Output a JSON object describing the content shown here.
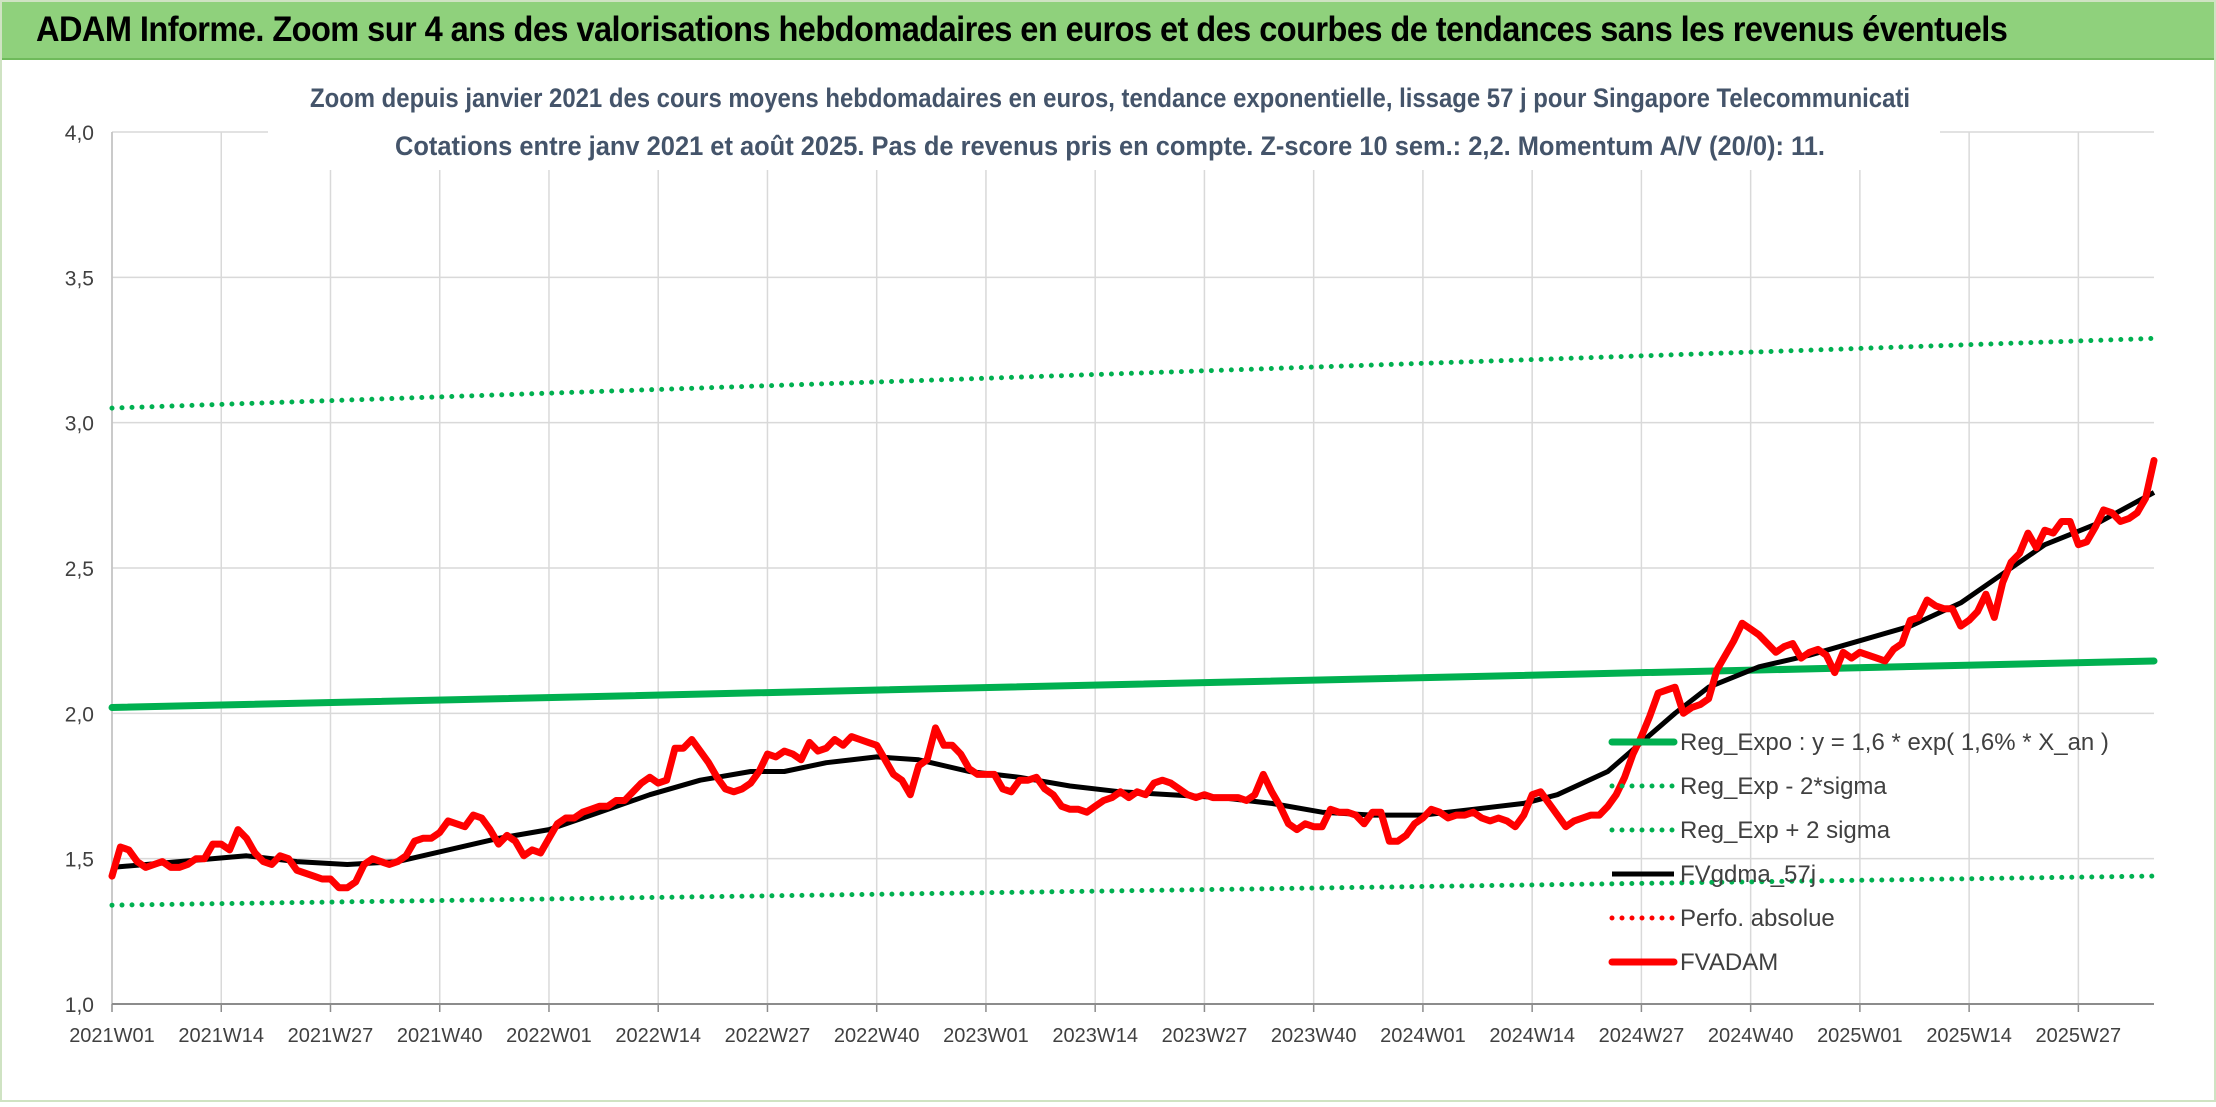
{
  "header": {
    "title": "ADAM Informe. Zoom sur 4 ans des valorisations hebdomadaires en euros et des courbes de tendances sans les revenus éventuels"
  },
  "colors": {
    "banner": "#8fd17c",
    "reg_expo": "#00b050",
    "fvgdma": "#000000",
    "perfo": "#ff0000",
    "fvadam": "#ff0000",
    "grid": "#d9d9d9",
    "title_text": "#44546a"
  },
  "chart_data": {
    "type": "line",
    "title": "Zoom depuis janvier 2021 des cours moyens hebdomadaires en euros, tendance exponentielle, lissage 57 j pour Singapore Telecommunicati",
    "subtitle": "Cotations entre janv 2021 et août 2025. Pas de revenus pris en compte. Z-score 10 sem.: 2,2. Momentum A/V (20/0): 11.",
    "xlabel": "",
    "ylabel": "",
    "ylim": [
      1.0,
      4.0
    ],
    "yticks": [
      "1,0",
      "1,5",
      "2,0",
      "2,5",
      "3,0",
      "3,5",
      "4,0"
    ],
    "ytick_values": [
      1.0,
      1.5,
      2.0,
      2.5,
      3.0,
      3.5,
      4.0
    ],
    "x_range_weeks": [
      0,
      243
    ],
    "xticks": [
      "2021W01",
      "2021W14",
      "2021W27",
      "2021W40",
      "2022W01",
      "2022W14",
      "2022W27",
      "2022W40",
      "2023W01",
      "2023W14",
      "2023W27",
      "2023W40",
      "2024W01",
      "2024W14",
      "2024W27",
      "2024W40",
      "2025W01",
      "2025W14",
      "2025W27"
    ],
    "xtick_weeks": [
      0,
      13,
      26,
      39,
      52,
      65,
      78,
      91,
      104,
      117,
      130,
      143,
      156,
      169,
      182,
      195,
      208,
      221,
      234
    ],
    "grid": "on",
    "legend_position": "bottom-right",
    "series": [
      {
        "name": "Reg_Expo : y = 1,6 * exp( 1,6% *  X_an )",
        "style": "solid-thick",
        "color": "#00b050",
        "points": [
          [
            0,
            2.02
          ],
          [
            243,
            2.18
          ]
        ]
      },
      {
        "name": "Reg_Exp - 2*sigma",
        "style": "dotted",
        "color": "#00b050",
        "points": [
          [
            0,
            1.34
          ],
          [
            243,
            1.44
          ]
        ]
      },
      {
        "name": "Reg_Exp + 2 sigma",
        "style": "dotted",
        "color": "#00b050",
        "points": [
          [
            0,
            3.05
          ],
          [
            243,
            3.29
          ]
        ]
      },
      {
        "name": "FVgdma_57j",
        "style": "solid",
        "color": "#000000",
        "points": [
          [
            0,
            1.47
          ],
          [
            8,
            1.49
          ],
          [
            16,
            1.51
          ],
          [
            22,
            1.49
          ],
          [
            28,
            1.48
          ],
          [
            34,
            1.49
          ],
          [
            40,
            1.53
          ],
          [
            46,
            1.57
          ],
          [
            52,
            1.6
          ],
          [
            58,
            1.66
          ],
          [
            64,
            1.72
          ],
          [
            70,
            1.77
          ],
          [
            76,
            1.8
          ],
          [
            80,
            1.8
          ],
          [
            85,
            1.83
          ],
          [
            91,
            1.85
          ],
          [
            96,
            1.84
          ],
          [
            102,
            1.8
          ],
          [
            108,
            1.78
          ],
          [
            114,
            1.75
          ],
          [
            120,
            1.73
          ],
          [
            126,
            1.72
          ],
          [
            132,
            1.71
          ],
          [
            138,
            1.69
          ],
          [
            144,
            1.66
          ],
          [
            150,
            1.65
          ],
          [
            156,
            1.65
          ],
          [
            162,
            1.67
          ],
          [
            168,
            1.69
          ],
          [
            172,
            1.72
          ],
          [
            178,
            1.8
          ],
          [
            182,
            1.9
          ],
          [
            186,
            2.0
          ],
          [
            190,
            2.09
          ],
          [
            196,
            2.16
          ],
          [
            202,
            2.2
          ],
          [
            208,
            2.25
          ],
          [
            214,
            2.3
          ],
          [
            220,
            2.38
          ],
          [
            226,
            2.5
          ],
          [
            230,
            2.58
          ],
          [
            236,
            2.65
          ],
          [
            243,
            2.76
          ]
        ]
      },
      {
        "name": "Perfo. absolue",
        "style": "dotted",
        "color": "#ff0000",
        "points": []
      },
      {
        "name": "FVADAM",
        "style": "solid-thick",
        "color": "#ff0000",
        "points": [
          [
            0,
            1.44
          ],
          [
            1,
            1.54
          ],
          [
            2,
            1.53
          ],
          [
            3,
            1.49
          ],
          [
            4,
            1.47
          ],
          [
            5,
            1.48
          ],
          [
            6,
            1.49
          ],
          [
            7,
            1.47
          ],
          [
            8,
            1.47
          ],
          [
            9,
            1.48
          ],
          [
            10,
            1.5
          ],
          [
            11,
            1.5
          ],
          [
            12,
            1.55
          ],
          [
            13,
            1.55
          ],
          [
            14,
            1.53
          ],
          [
            15,
            1.6
          ],
          [
            16,
            1.57
          ],
          [
            17,
            1.52
          ],
          [
            18,
            1.49
          ],
          [
            19,
            1.48
          ],
          [
            20,
            1.51
          ],
          [
            21,
            1.5
          ],
          [
            22,
            1.46
          ],
          [
            23,
            1.45
          ],
          [
            24,
            1.44
          ],
          [
            25,
            1.43
          ],
          [
            26,
            1.43
          ],
          [
            27,
            1.4
          ],
          [
            28,
            1.4
          ],
          [
            29,
            1.42
          ],
          [
            30,
            1.48
          ],
          [
            31,
            1.5
          ],
          [
            32,
            1.49
          ],
          [
            33,
            1.48
          ],
          [
            34,
            1.49
          ],
          [
            35,
            1.51
          ],
          [
            36,
            1.56
          ],
          [
            37,
            1.57
          ],
          [
            38,
            1.57
          ],
          [
            39,
            1.59
          ],
          [
            40,
            1.63
          ],
          [
            41,
            1.62
          ],
          [
            42,
            1.61
          ],
          [
            43,
            1.65
          ],
          [
            44,
            1.64
          ],
          [
            45,
            1.6
          ],
          [
            46,
            1.55
          ],
          [
            47,
            1.58
          ],
          [
            48,
            1.56
          ],
          [
            49,
            1.51
          ],
          [
            50,
            1.53
          ],
          [
            51,
            1.52
          ],
          [
            52,
            1.57
          ],
          [
            53,
            1.62
          ],
          [
            54,
            1.64
          ],
          [
            55,
            1.64
          ],
          [
            56,
            1.66
          ],
          [
            57,
            1.67
          ],
          [
            58,
            1.68
          ],
          [
            59,
            1.68
          ],
          [
            60,
            1.7
          ],
          [
            61,
            1.7
          ],
          [
            62,
            1.73
          ],
          [
            63,
            1.76
          ],
          [
            64,
            1.78
          ],
          [
            65,
            1.76
          ],
          [
            66,
            1.77
          ],
          [
            67,
            1.88
          ],
          [
            68,
            1.88
          ],
          [
            69,
            1.91
          ],
          [
            70,
            1.87
          ],
          [
            71,
            1.83
          ],
          [
            72,
            1.78
          ],
          [
            73,
            1.74
          ],
          [
            74,
            1.73
          ],
          [
            75,
            1.74
          ],
          [
            76,
            1.76
          ],
          [
            77,
            1.8
          ],
          [
            78,
            1.86
          ],
          [
            79,
            1.85
          ],
          [
            80,
            1.87
          ],
          [
            81,
            1.86
          ],
          [
            82,
            1.84
          ],
          [
            83,
            1.9
          ],
          [
            84,
            1.87
          ],
          [
            85,
            1.88
          ],
          [
            86,
            1.91
          ],
          [
            87,
            1.89
          ],
          [
            88,
            1.92
          ],
          [
            89,
            1.91
          ],
          [
            90,
            1.9
          ],
          [
            91,
            1.89
          ],
          [
            92,
            1.84
          ],
          [
            93,
            1.79
          ],
          [
            94,
            1.77
          ],
          [
            95,
            1.72
          ],
          [
            96,
            1.82
          ],
          [
            97,
            1.84
          ],
          [
            98,
            1.95
          ],
          [
            99,
            1.89
          ],
          [
            100,
            1.89
          ],
          [
            101,
            1.86
          ],
          [
            102,
            1.81
          ],
          [
            103,
            1.79
          ],
          [
            104,
            1.79
          ],
          [
            105,
            1.79
          ],
          [
            106,
            1.74
          ],
          [
            107,
            1.73
          ],
          [
            108,
            1.77
          ],
          [
            109,
            1.77
          ],
          [
            110,
            1.78
          ],
          [
            111,
            1.74
          ],
          [
            112,
            1.72
          ],
          [
            113,
            1.68
          ],
          [
            114,
            1.67
          ],
          [
            115,
            1.67
          ],
          [
            116,
            1.66
          ],
          [
            117,
            1.68
          ],
          [
            118,
            1.7
          ],
          [
            119,
            1.71
          ],
          [
            120,
            1.73
          ],
          [
            121,
            1.71
          ],
          [
            122,
            1.73
          ],
          [
            123,
            1.72
          ],
          [
            124,
            1.76
          ],
          [
            125,
            1.77
          ],
          [
            126,
            1.76
          ],
          [
            127,
            1.74
          ],
          [
            128,
            1.72
          ],
          [
            129,
            1.71
          ],
          [
            130,
            1.72
          ],
          [
            131,
            1.71
          ],
          [
            132,
            1.71
          ],
          [
            133,
            1.71
          ],
          [
            134,
            1.71
          ],
          [
            135,
            1.7
          ],
          [
            136,
            1.72
          ],
          [
            137,
            1.79
          ],
          [
            138,
            1.73
          ],
          [
            139,
            1.68
          ],
          [
            140,
            1.62
          ],
          [
            141,
            1.6
          ],
          [
            142,
            1.62
          ],
          [
            143,
            1.61
          ],
          [
            144,
            1.61
          ],
          [
            145,
            1.67
          ],
          [
            146,
            1.66
          ],
          [
            147,
            1.66
          ],
          [
            148,
            1.65
          ],
          [
            149,
            1.62
          ],
          [
            150,
            1.66
          ],
          [
            151,
            1.66
          ],
          [
            152,
            1.56
          ],
          [
            153,
            1.56
          ],
          [
            154,
            1.58
          ],
          [
            155,
            1.62
          ],
          [
            156,
            1.64
          ],
          [
            157,
            1.67
          ],
          [
            158,
            1.66
          ],
          [
            159,
            1.64
          ],
          [
            160,
            1.65
          ],
          [
            161,
            1.65
          ],
          [
            162,
            1.66
          ],
          [
            163,
            1.64
          ],
          [
            164,
            1.63
          ],
          [
            165,
            1.64
          ],
          [
            166,
            1.63
          ],
          [
            167,
            1.61
          ],
          [
            168,
            1.65
          ],
          [
            169,
            1.72
          ],
          [
            170,
            1.73
          ],
          [
            171,
            1.69
          ],
          [
            172,
            1.65
          ],
          [
            173,
            1.61
          ],
          [
            174,
            1.63
          ],
          [
            175,
            1.64
          ],
          [
            176,
            1.65
          ],
          [
            177,
            1.65
          ],
          [
            178,
            1.68
          ],
          [
            179,
            1.72
          ],
          [
            180,
            1.78
          ],
          [
            181,
            1.86
          ],
          [
            182,
            1.92
          ],
          [
            183,
            1.99
          ],
          [
            184,
            2.07
          ],
          [
            185,
            2.08
          ],
          [
            186,
            2.09
          ],
          [
            187,
            2.0
          ],
          [
            188,
            2.02
          ],
          [
            189,
            2.03
          ],
          [
            190,
            2.05
          ],
          [
            191,
            2.15
          ],
          [
            192,
            2.2
          ],
          [
            193,
            2.25
          ],
          [
            194,
            2.31
          ],
          [
            195,
            2.29
          ],
          [
            196,
            2.27
          ],
          [
            197,
            2.24
          ],
          [
            198,
            2.21
          ],
          [
            199,
            2.23
          ],
          [
            200,
            2.24
          ],
          [
            201,
            2.19
          ],
          [
            202,
            2.21
          ],
          [
            203,
            2.22
          ],
          [
            204,
            2.2
          ],
          [
            205,
            2.14
          ],
          [
            206,
            2.21
          ],
          [
            207,
            2.19
          ],
          [
            208,
            2.21
          ],
          [
            209,
            2.2
          ],
          [
            210,
            2.19
          ],
          [
            211,
            2.18
          ],
          [
            212,
            2.22
          ],
          [
            213,
            2.24
          ],
          [
            214,
            2.32
          ],
          [
            215,
            2.33
          ],
          [
            216,
            2.39
          ],
          [
            217,
            2.37
          ],
          [
            218,
            2.36
          ],
          [
            219,
            2.36
          ],
          [
            220,
            2.3
          ],
          [
            221,
            2.32
          ],
          [
            222,
            2.35
          ],
          [
            223,
            2.41
          ],
          [
            224,
            2.33
          ],
          [
            225,
            2.45
          ],
          [
            226,
            2.52
          ],
          [
            227,
            2.55
          ],
          [
            228,
            2.62
          ],
          [
            229,
            2.57
          ],
          [
            230,
            2.63
          ],
          [
            231,
            2.62
          ],
          [
            232,
            2.66
          ],
          [
            233,
            2.66
          ],
          [
            234,
            2.58
          ],
          [
            235,
            2.59
          ],
          [
            236,
            2.64
          ],
          [
            237,
            2.7
          ],
          [
            238,
            2.69
          ],
          [
            239,
            2.66
          ],
          [
            240,
            2.67
          ],
          [
            241,
            2.69
          ],
          [
            242,
            2.74
          ],
          [
            243,
            2.87
          ]
        ]
      }
    ]
  }
}
